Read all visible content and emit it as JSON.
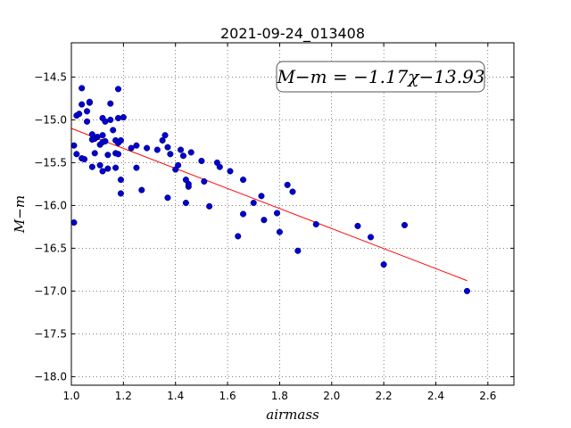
{
  "chart_data": {
    "type": "scatter",
    "title": "2021-09-24_013408",
    "xlabel": "airmass",
    "ylabel": "M−m",
    "xlim": [
      1.0,
      2.7
    ],
    "ylim": [
      -18.1,
      -14.1
    ],
    "y_inverted": false,
    "grid": true,
    "x_ticks": [
      1.0,
      1.2,
      1.4,
      1.6,
      1.8,
      2.0,
      2.2,
      2.4,
      2.6
    ],
    "x_tick_labels": [
      "1.0",
      "1.2",
      "1.4",
      "1.6",
      "1.8",
      "2.0",
      "2.2",
      "2.4",
      "2.6"
    ],
    "y_ticks": [
      -14.5,
      -15.0,
      -15.5,
      -16.0,
      -16.5,
      -17.0,
      -17.5,
      -18.0
    ],
    "y_tick_labels": [
      "−14.5",
      "−15.0",
      "−15.5",
      "−16.0",
      "−16.5",
      "−17.0",
      "−17.5",
      "−18.0"
    ],
    "annotation": "M−m = −1.17χ−13.93",
    "fit": {
      "slope": -1.17,
      "intercept": -13.93,
      "x_range": [
        1.0,
        2.52
      ],
      "color": "#ff0000"
    },
    "point_color": "#0000cc",
    "series": [
      {
        "points": [
          [
            1.01,
            -16.2
          ],
          [
            1.01,
            -15.3
          ],
          [
            1.02,
            -15.4
          ],
          [
            1.02,
            -14.95
          ],
          [
            1.03,
            -14.93
          ],
          [
            1.04,
            -14.63
          ],
          [
            1.04,
            -14.82
          ],
          [
            1.04,
            -15.45
          ],
          [
            1.05,
            -15.46
          ],
          [
            1.06,
            -14.9
          ],
          [
            1.06,
            -15.02
          ],
          [
            1.07,
            -14.8
          ],
          [
            1.07,
            -14.79
          ],
          [
            1.08,
            -15.17
          ],
          [
            1.08,
            -15.23
          ],
          [
            1.08,
            -15.55
          ],
          [
            1.09,
            -15.39
          ],
          [
            1.09,
            -15.22
          ],
          [
            1.1,
            -15.2
          ],
          [
            1.11,
            -15.53
          ],
          [
            1.11,
            -15.29
          ],
          [
            1.12,
            -15.6
          ],
          [
            1.12,
            -15.26
          ],
          [
            1.12,
            -14.98
          ],
          [
            1.12,
            -15.18
          ],
          [
            1.13,
            -15.02
          ],
          [
            1.13,
            -15.25
          ],
          [
            1.14,
            -15.41
          ],
          [
            1.14,
            -15.57
          ],
          [
            1.15,
            -15.0
          ],
          [
            1.15,
            -14.81
          ],
          [
            1.16,
            -15.12
          ],
          [
            1.17,
            -15.24
          ],
          [
            1.17,
            -15.56
          ],
          [
            1.17,
            -15.39
          ],
          [
            1.18,
            -14.98
          ],
          [
            1.18,
            -15.4
          ],
          [
            1.18,
            -15.27
          ],
          [
            1.19,
            -15.24
          ],
          [
            1.19,
            -15.7
          ],
          [
            1.19,
            -15.86
          ],
          [
            1.18,
            -14.64
          ],
          [
            1.2,
            -14.97
          ],
          [
            1.23,
            -15.33
          ],
          [
            1.25,
            -15.3
          ],
          [
            1.25,
            -15.56
          ],
          [
            1.27,
            -15.82
          ],
          [
            1.29,
            -15.33
          ],
          [
            1.33,
            -15.35
          ],
          [
            1.35,
            -15.24
          ],
          [
            1.36,
            -15.18
          ],
          [
            1.37,
            -15.91
          ],
          [
            1.37,
            -15.32
          ],
          [
            1.38,
            -15.4
          ],
          [
            1.4,
            -15.58
          ],
          [
            1.41,
            -15.53
          ],
          [
            1.42,
            -15.35
          ],
          [
            1.43,
            -15.42
          ],
          [
            1.44,
            -15.97
          ],
          [
            1.44,
            -15.7
          ],
          [
            1.45,
            -15.78
          ],
          [
            1.45,
            -15.75
          ],
          [
            1.46,
            -15.38
          ],
          [
            1.5,
            -15.48
          ],
          [
            1.51,
            -15.72
          ],
          [
            1.53,
            -16.01
          ],
          [
            1.56,
            -15.5
          ],
          [
            1.57,
            -15.55
          ],
          [
            1.61,
            -15.6
          ],
          [
            1.64,
            -16.36
          ],
          [
            1.66,
            -15.7
          ],
          [
            1.66,
            -16.1
          ],
          [
            1.7,
            -15.97
          ],
          [
            1.73,
            -15.89
          ],
          [
            1.74,
            -16.17
          ],
          [
            1.79,
            -16.09
          ],
          [
            1.8,
            -16.31
          ],
          [
            1.83,
            -15.76
          ],
          [
            1.85,
            -15.84
          ],
          [
            1.87,
            -16.53
          ],
          [
            1.94,
            -16.22
          ],
          [
            2.1,
            -16.24
          ],
          [
            2.15,
            -16.37
          ],
          [
            2.2,
            -16.69
          ],
          [
            2.28,
            -16.23
          ],
          [
            2.52,
            -17.0
          ]
        ]
      }
    ]
  }
}
